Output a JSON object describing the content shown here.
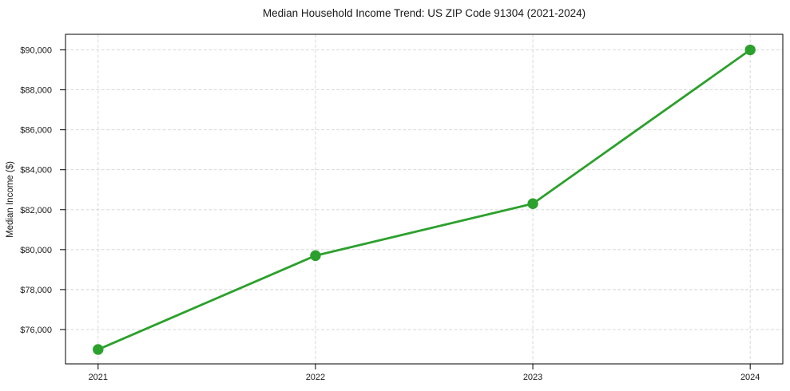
{
  "chart_data": {
    "type": "line",
    "title": "Median Household Income Trend: US ZIP Code 91304 (2021-2024)",
    "xlabel": "",
    "ylabel": "Median Income ($)",
    "x": [
      2021,
      2022,
      2023,
      2024
    ],
    "x_tick_labels": [
      "2021",
      "2022",
      "2023",
      "2024"
    ],
    "values": [
      75000,
      79700,
      82300,
      90000
    ],
    "yticks": [
      76000,
      78000,
      80000,
      82000,
      84000,
      86000,
      88000,
      90000
    ],
    "y_tick_labels": [
      "$76,000",
      "$78,000",
      "$80,000",
      "$82,000",
      "$84,000",
      "$86,000",
      "$88,000",
      "$90,000"
    ],
    "xlim": [
      2020.85,
      2024.15
    ],
    "ylim": [
      74280,
      90780
    ],
    "grid": true,
    "grid_style": "dashed",
    "legend_position": "none",
    "marker": "circle",
    "colors": {
      "line": "#2ca02c",
      "marker": "#2ca02c",
      "grid": "#d4d4d4",
      "axis": "#000000",
      "text": "#1a1a1a",
      "background": "#ffffff"
    }
  }
}
